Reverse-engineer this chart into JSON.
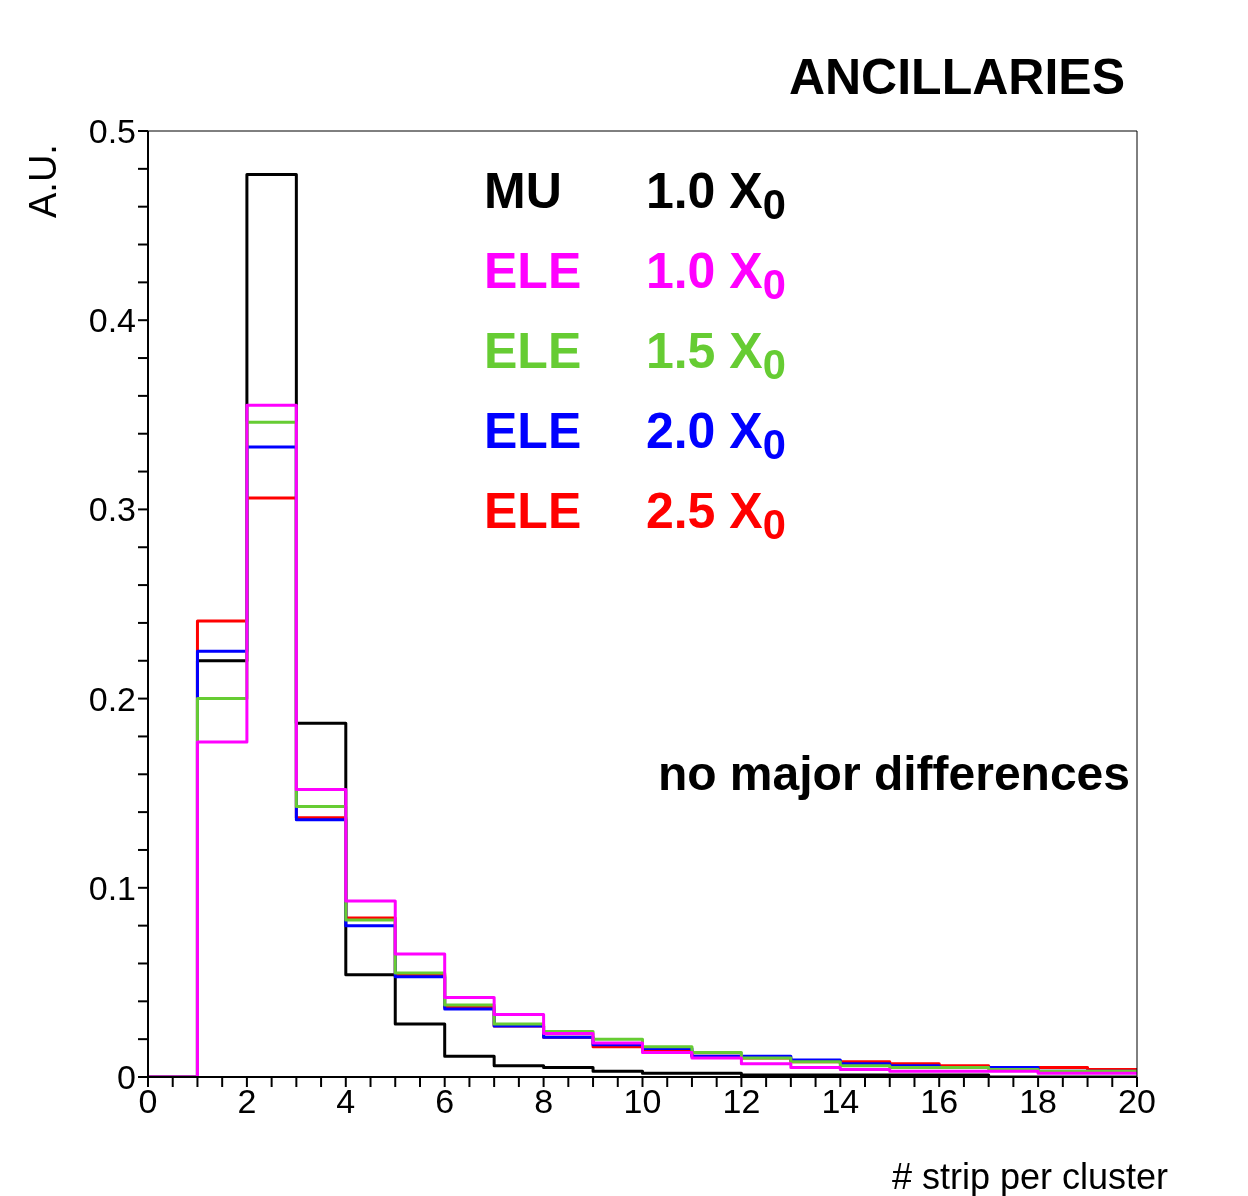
{
  "chart_data": {
    "type": "histogram",
    "title": "ANCILLARIES",
    "xlabel": "# strip per cluster",
    "ylabel": "A.U.",
    "annotations": [
      "no major differences"
    ],
    "bins": [
      0,
      1,
      2,
      3,
      4,
      5,
      6,
      7,
      8,
      9,
      10,
      11,
      12,
      13,
      14,
      15,
      16,
      17,
      18,
      19,
      20
    ],
    "series": [
      {
        "name": "MU 1.0 X$_{0}$",
        "color": "#000000",
        "values": [
          0,
          0.22,
          0.477,
          0.187,
          0.054,
          0.028,
          0.011,
          0.006,
          0.005,
          0.003,
          0.002,
          0.002,
          0.001,
          0.001,
          0.001,
          0.001,
          0.001,
          0,
          0,
          0
        ]
      },
      {
        "name": "ELE 1.0 X$_{0}$",
        "color": "#ff00ff",
        "values": [
          0,
          0.177,
          0.355,
          0.152,
          0.093,
          0.065,
          0.042,
          0.033,
          0.023,
          0.018,
          0.013,
          0.01,
          0.007,
          0.005,
          0.004,
          0.003,
          0.003,
          0.003,
          0.002,
          0.002
        ]
      },
      {
        "name": "ELE 1.5 X$_{0}$",
        "color": "#66cc33",
        "values": [
          0,
          0.2,
          0.346,
          0.143,
          0.083,
          0.055,
          0.038,
          0.028,
          0.024,
          0.02,
          0.016,
          0.013,
          0.01,
          0.008,
          0.006,
          0.005,
          0.005,
          0.004,
          0.003,
          0.003
        ]
      },
      {
        "name": "ELE 2.0 X$_{0}$",
        "color": "#0000ff",
        "values": [
          0,
          0.225,
          0.333,
          0.136,
          0.08,
          0.053,
          0.036,
          0.027,
          0.021,
          0.017,
          0.015,
          0.011,
          0.011,
          0.009,
          0.007,
          0.006,
          0.005,
          0.005,
          0.003,
          0.003
        ]
      },
      {
        "name": "ELE 2.5 X$_{0}$",
        "color": "#ff0000",
        "values": [
          0,
          0.241,
          0.306,
          0.137,
          0.084,
          0.054,
          0.037,
          0.027,
          0.021,
          0.016,
          0.014,
          0.011,
          0.01,
          0.008,
          0.008,
          0.007,
          0.006,
          0.005,
          0.005,
          0.004
        ]
      }
    ],
    "xlim": [
      0,
      20
    ],
    "xticks": [
      0,
      {
        "value": 0.5,
        "label": null
      },
      {
        "value": 1,
        "label": null
      },
      {
        "value": 1.5,
        "label": null
      },
      2,
      {
        "value": 2.5,
        "label": null
      },
      {
        "value": 3,
        "label": null
      },
      {
        "value": 3.5,
        "label": null
      },
      4,
      {
        "value": 4.5,
        "label": null
      },
      {
        "value": 5,
        "label": null
      },
      {
        "value": 5.5,
        "label": null
      },
      6,
      {
        "value": 6.5,
        "label": null
      },
      {
        "value": 7,
        "label": null
      },
      {
        "value": 7.5,
        "label": null
      },
      8,
      {
        "value": 8.5,
        "label": null
      },
      {
        "value": 9,
        "label": null
      },
      {
        "value": 9.5,
        "label": null
      },
      10,
      {
        "value": 10.5,
        "label": null
      },
      {
        "value": 11,
        "label": null
      },
      {
        "value": 11.5,
        "label": null
      },
      12,
      {
        "value": 12.5,
        "label": null
      },
      {
        "value": 13,
        "label": null
      },
      {
        "value": 13.5,
        "label": null
      },
      14,
      {
        "value": 14.5,
        "label": null
      },
      {
        "value": 15,
        "label": null
      },
      {
        "value": 15.5,
        "label": null
      },
      16,
      {
        "value": 16.5,
        "label": null
      },
      {
        "value": 17,
        "label": null
      },
      {
        "value": 17.5,
        "label": null
      },
      18,
      {
        "value": 18.5,
        "label": null
      },
      {
        "value": 19,
        "label": null
      },
      {
        "value": 19.5,
        "label": null
      },
      20
    ],
    "ylim": [
      0,
      0.5
    ],
    "yticks": [
      0,
      {
        "value": 0.02,
        "label": null
      },
      {
        "value": 0.04,
        "label": null
      },
      {
        "value": 0.06,
        "label": null
      },
      {
        "value": 0.08,
        "label": null
      },
      0.1,
      {
        "value": 0.12,
        "label": null
      },
      {
        "value": 0.14,
        "label": null
      },
      {
        "value": 0.16,
        "label": null
      },
      {
        "value": 0.18,
        "label": null
      },
      0.2,
      {
        "value": 0.22,
        "label": null
      },
      {
        "value": 0.24,
        "label": null
      },
      {
        "value": 0.26,
        "label": null
      },
      {
        "value": 0.28,
        "label": null
      },
      0.3,
      {
        "value": 0.32,
        "label": null
      },
      {
        "value": 0.34,
        "label": null
      },
      {
        "value": 0.36,
        "label": null
      },
      {
        "value": 0.38,
        "label": null
      },
      0.4,
      {
        "value": 0.42,
        "label": null
      },
      {
        "value": 0.44,
        "label": null
      },
      {
        "value": 0.46,
        "label": null
      },
      {
        "value": 0.48,
        "label": null
      },
      0.5
    ]
  }
}
